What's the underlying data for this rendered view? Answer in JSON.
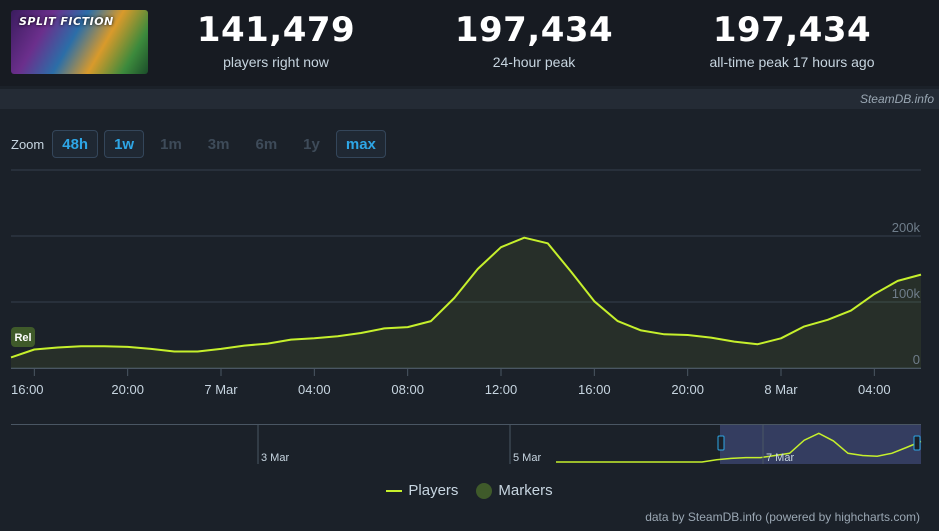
{
  "header": {
    "game_logo_text": "SPLIT FICTION",
    "stats": [
      {
        "value": "141,479",
        "label": "players right now"
      },
      {
        "value": "197,434",
        "label": "24-hour peak"
      },
      {
        "value": "197,434",
        "label": "all-time peak 17 hours ago"
      }
    ]
  },
  "credit": "SteamDB.info",
  "zoom": {
    "label": "Zoom",
    "buttons": [
      {
        "label": "48h",
        "active": true
      },
      {
        "label": "1w",
        "active": true
      },
      {
        "label": "1m",
        "active": false
      },
      {
        "label": "3m",
        "active": false
      },
      {
        "label": "6m",
        "active": false
      },
      {
        "label": "1y",
        "active": false
      },
      {
        "label": "max",
        "active": true
      }
    ]
  },
  "chart_data": {
    "type": "line",
    "series": [
      {
        "name": "Players",
        "x": [
          "2025-03-06 15:00",
          "2025-03-06 16:00",
          "2025-03-06 17:00",
          "2025-03-06 18:00",
          "2025-03-06 19:00",
          "2025-03-06 20:00",
          "2025-03-06 21:00",
          "2025-03-06 22:00",
          "2025-03-06 23:00",
          "2025-03-07 00:00",
          "2025-03-07 01:00",
          "2025-03-07 02:00",
          "2025-03-07 03:00",
          "2025-03-07 04:00",
          "2025-03-07 05:00",
          "2025-03-07 06:00",
          "2025-03-07 07:00",
          "2025-03-07 08:00",
          "2025-03-07 09:00",
          "2025-03-07 10:00",
          "2025-03-07 11:00",
          "2025-03-07 12:00",
          "2025-03-07 13:00",
          "2025-03-07 14:00",
          "2025-03-07 15:00",
          "2025-03-07 16:00",
          "2025-03-07 17:00",
          "2025-03-07 18:00",
          "2025-03-07 19:00",
          "2025-03-07 20:00",
          "2025-03-07 21:00",
          "2025-03-07 22:00",
          "2025-03-07 23:00",
          "2025-03-08 00:00",
          "2025-03-08 01:00",
          "2025-03-08 02:00",
          "2025-03-08 03:00",
          "2025-03-08 04:00",
          "2025-03-08 05:00",
          "2025-03-08 06:00"
        ],
        "values": [
          16000,
          28000,
          31000,
          33000,
          33000,
          32000,
          29000,
          25000,
          25000,
          29000,
          34000,
          37000,
          43000,
          45000,
          48000,
          53000,
          60000,
          62000,
          71000,
          106000,
          150000,
          183000,
          197434,
          189000,
          146000,
          101000,
          71000,
          57000,
          51000,
          50000,
          46000,
          40000,
          36000,
          45000,
          63000,
          73000,
          87000,
          112000,
          132000,
          141479
        ]
      }
    ],
    "markers": [
      {
        "label": "Rel",
        "x": "2025-03-06 15:00"
      }
    ],
    "x_tick_labels": [
      "16:00",
      "20:00",
      "7 Mar",
      "04:00",
      "08:00",
      "12:00",
      "16:00",
      "20:00",
      "8 Mar",
      "04:00"
    ],
    "y_tick_labels": [
      "0",
      "100k",
      "200k"
    ],
    "ylim": [
      0,
      300000
    ],
    "grid": true,
    "legend": [
      "Players",
      "Markers"
    ],
    "navigator": {
      "labels": [
        "3 Mar",
        "5 Mar",
        "7 Mar"
      ],
      "values": [
        0,
        0,
        0,
        0,
        0,
        0,
        0,
        0,
        0,
        0,
        0,
        16000,
        25000,
        30000,
        30000,
        45000,
        60000,
        150000,
        197434,
        145000,
        60000,
        45000,
        40000,
        60000,
        100000,
        141479
      ]
    }
  },
  "legend": {
    "players": "Players",
    "markers": "Markers"
  },
  "footer": "data by SteamDB.info (powered by highcharts.com)",
  "colors": {
    "line": "#c6f02c",
    "accent": "#2ea6e6",
    "background": "#1b2129",
    "header_bg": "#171b22",
    "marker": "#3f5a2a"
  }
}
